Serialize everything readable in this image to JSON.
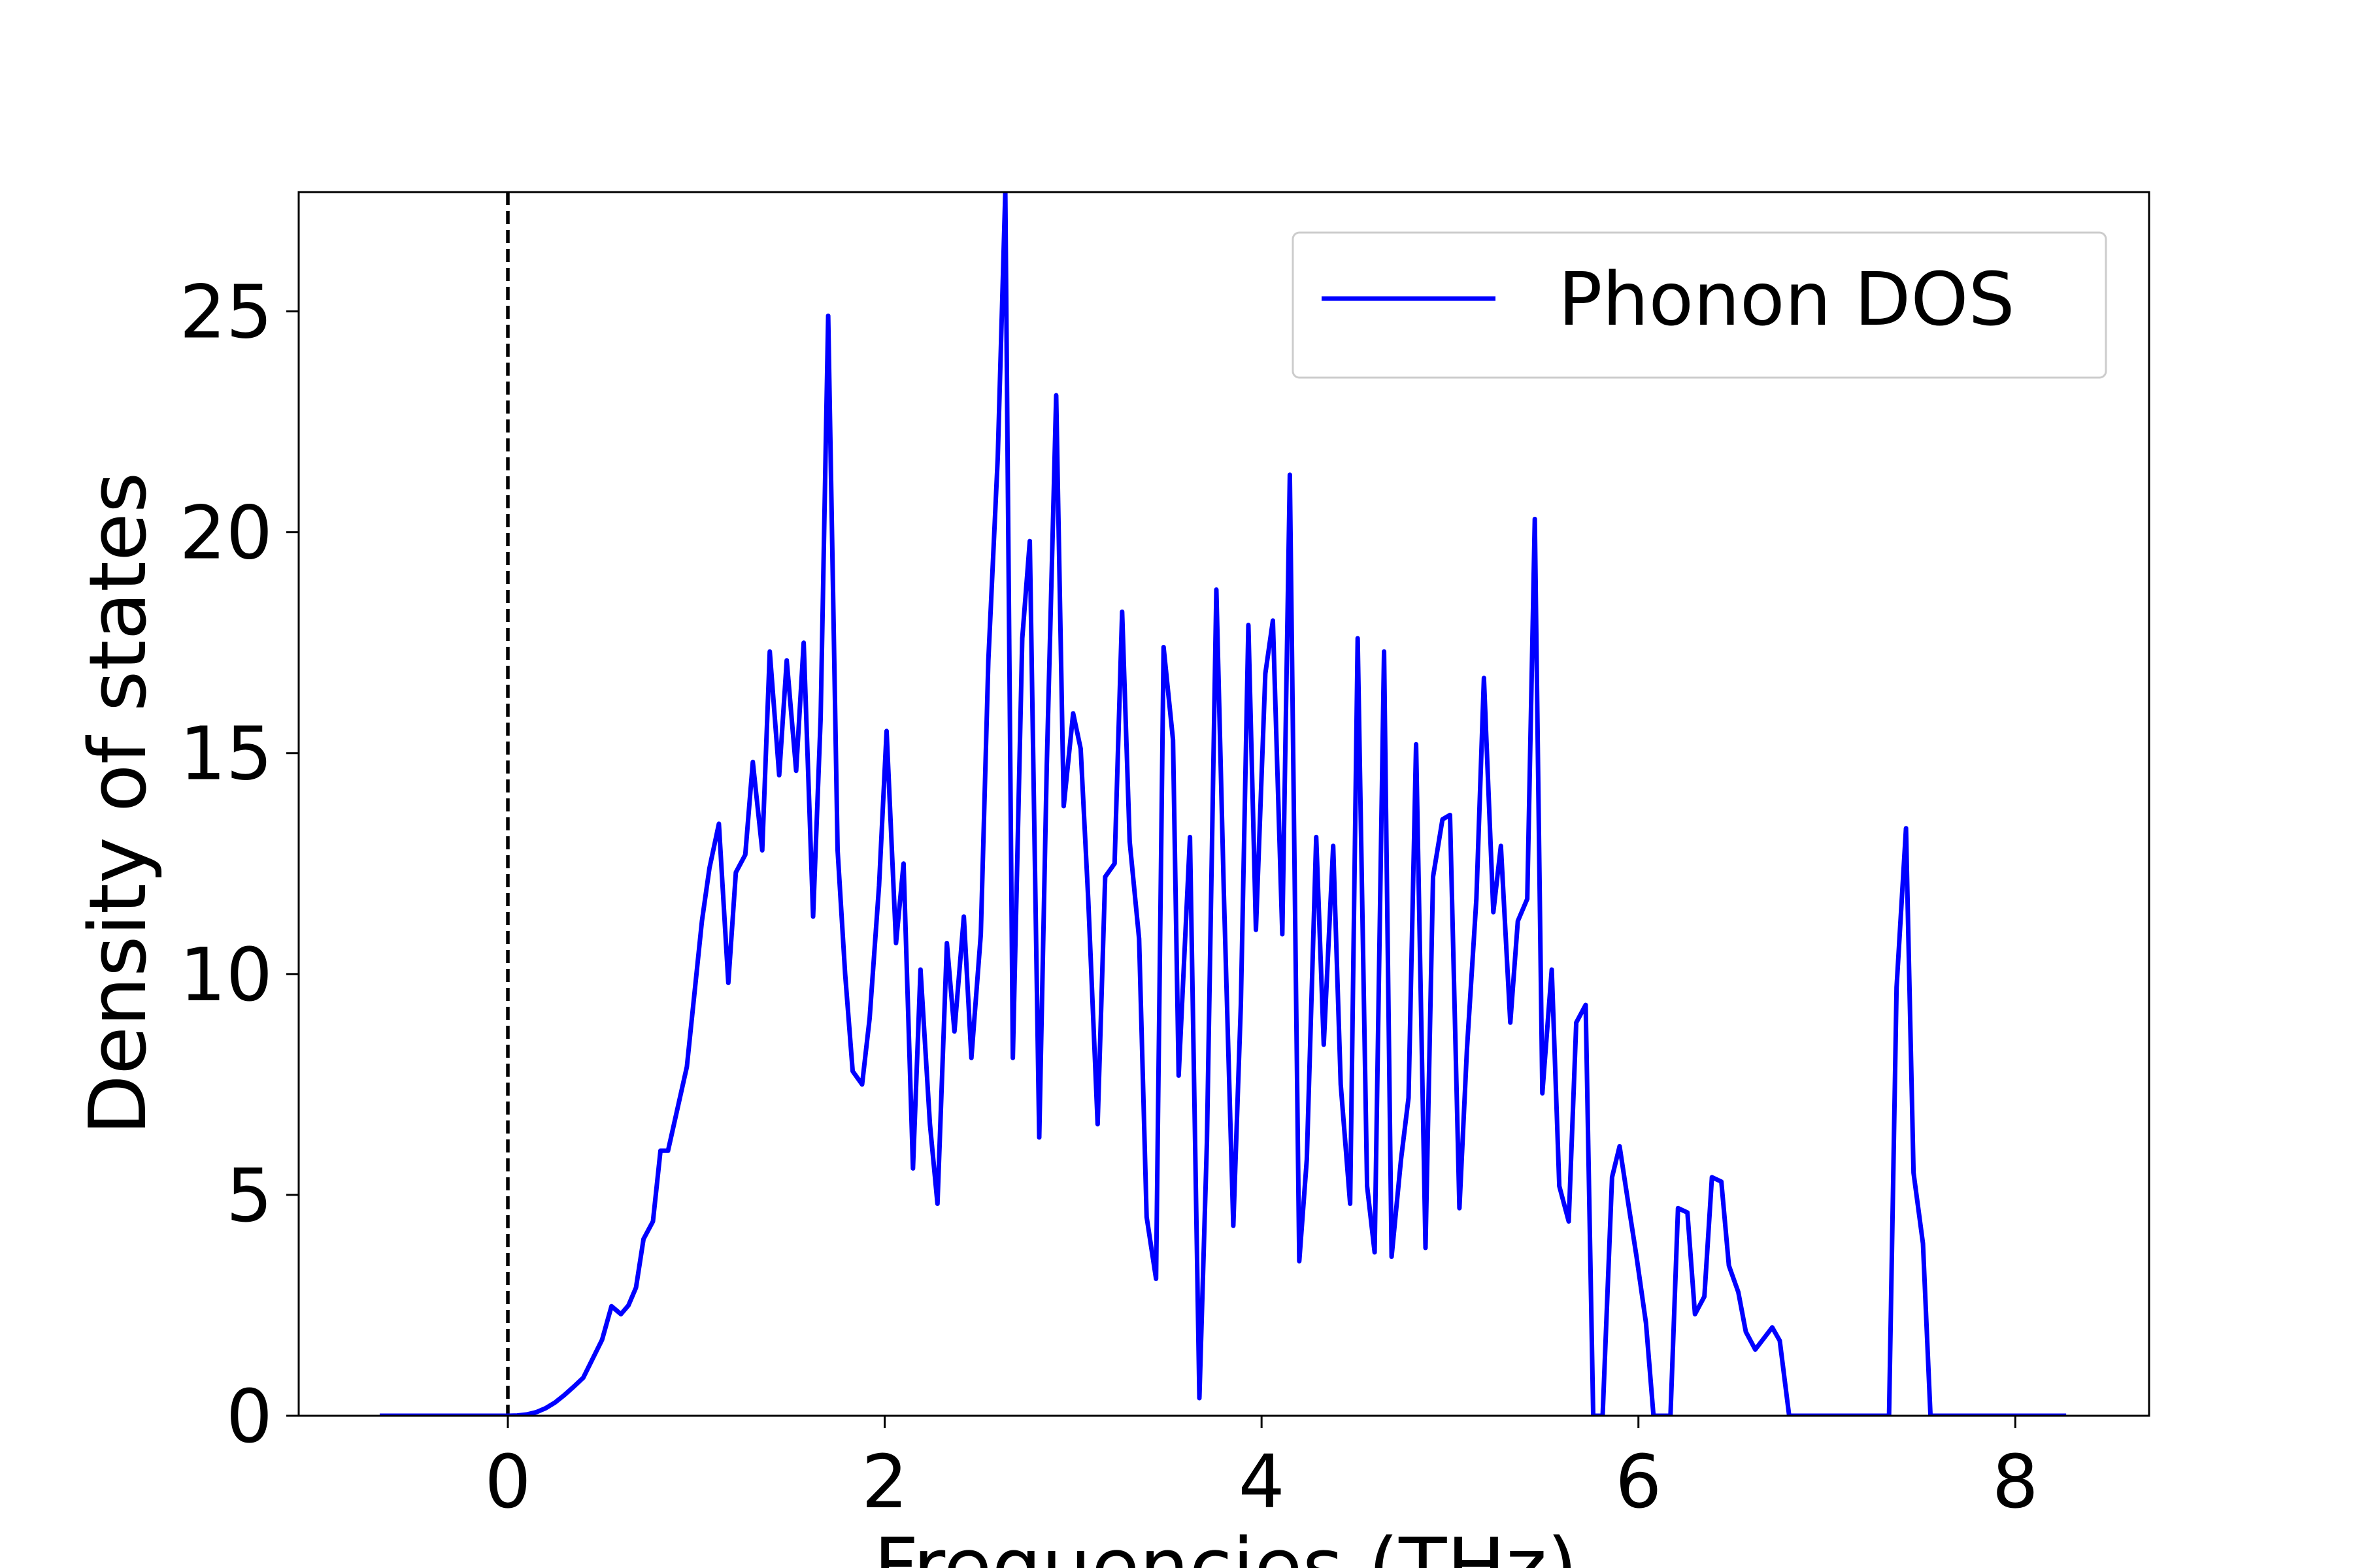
{
  "chart_data": {
    "type": "line",
    "xlabel": "Frequencies (THz)",
    "ylabel": "Density of states",
    "xlim": [
      -1.11,
      8.71
    ],
    "ylim": [
      0,
      27.7
    ],
    "xticks": [
      0,
      2,
      4,
      6,
      8
    ],
    "yticks": [
      0,
      5,
      10,
      15,
      20,
      25
    ],
    "vlines": [
      0
    ],
    "legend": "upper right",
    "series": [
      {
        "name": "Phonon DOS",
        "color": "#0000ff",
        "x": [
          -0.68,
          0,
          0.05,
          0.1,
          0.15,
          0.2,
          0.25,
          0.3,
          0.35,
          0.4,
          0.5,
          0.55,
          0.6,
          0.64,
          0.68,
          0.72,
          0.77,
          0.81,
          0.85,
          0.95,
          1.03,
          1.07,
          1.12,
          1.17,
          1.21,
          1.26,
          1.3,
          1.35,
          1.39,
          1.44,
          1.48,
          1.53,
          1.57,
          1.62,
          1.66,
          1.7,
          1.75,
          1.79,
          1.83,
          1.88,
          1.92,
          1.97,
          2.01,
          2.06,
          2.1,
          2.15,
          2.19,
          2.24,
          2.28,
          2.33,
          2.37,
          2.42,
          2.46,
          2.51,
          2.55,
          2.6,
          2.64,
          2.68,
          2.73,
          2.77,
          2.82,
          2.86,
          2.91,
          2.95,
          3.0,
          3.04,
          3.08,
          3.13,
          3.17,
          3.22,
          3.26,
          3.3,
          3.35,
          3.39,
          3.44,
          3.48,
          3.53,
          3.56,
          3.62,
          3.67,
          3.71,
          3.76,
          3.8,
          3.85,
          3.89,
          3.93,
          3.97,
          4.02,
          4.06,
          4.11,
          4.15,
          4.2,
          4.24,
          4.29,
          4.33,
          4.38,
          4.42,
          4.47,
          4.51,
          4.56,
          4.6,
          4.65,
          4.69,
          4.74,
          4.78,
          4.82,
          4.87,
          4.91,
          4.96,
          5.0,
          5.05,
          5.09,
          5.14,
          5.18,
          5.23,
          5.27,
          5.32,
          5.36,
          5.41,
          5.45,
          5.49,
          5.54,
          5.58,
          5.63,
          5.67,
          5.72,
          5.76,
          5.81,
          5.86,
          5.9,
          5.95,
          5.99,
          6.04,
          6.08,
          6.17,
          6.21,
          6.26,
          6.3,
          6.35,
          6.39,
          6.44,
          6.48,
          6.53,
          6.57,
          6.62,
          6.71,
          6.75,
          6.8,
          7.33,
          7.37,
          7.42,
          7.46,
          7.51,
          7.55,
          8.27
        ],
        "values": [
          0,
          0,
          0.005,
          0.03,
          0.08,
          0.17,
          0.3,
          0.47,
          0.66,
          0.86,
          1.72,
          2.48,
          2.3,
          2.5,
          2.9,
          4.0,
          4.4,
          6.0,
          6.0,
          7.9,
          11.2,
          12.4,
          13.4,
          9.8,
          12.3,
          12.7,
          14.8,
          12.8,
          17.3,
          14.5,
          17.1,
          14.6,
          17.5,
          11.3,
          15.8,
          24.9,
          12.8,
          10.0,
          7.8,
          7.5,
          9.0,
          12.0,
          15.5,
          10.7,
          12.5,
          5.6,
          10.1,
          6.6,
          4.8,
          10.7,
          8.7,
          11.3,
          8.1,
          10.9,
          17.1,
          21.7,
          27.7,
          8.1,
          17.6,
          19.8,
          6.3,
          14.7,
          23.1,
          13.8,
          15.9,
          15.1,
          11.7,
          6.6,
          12.2,
          12.5,
          18.2,
          13.0,
          10.8,
          4.5,
          3.1,
          17.4,
          15.3,
          7.7,
          13.1,
          0.4,
          6.2,
          18.7,
          11.8,
          4.3,
          9.3,
          17.9,
          11.0,
          16.8,
          18.0,
          10.9,
          21.3,
          3.5,
          5.8,
          13.1,
          8.4,
          12.9,
          7.5,
          4.8,
          17.6,
          5.2,
          3.7,
          17.3,
          3.6,
          5.8,
          7.2,
          15.2,
          3.8,
          12.2,
          13.5,
          13.6,
          4.7,
          8.3,
          11.7,
          16.7,
          11.4,
          12.9,
          8.9,
          11.2,
          11.7,
          20.3,
          7.3,
          10.1,
          5.2,
          4.4,
          8.9,
          9.3,
          0,
          0,
          5.4,
          6.1,
          4.7,
          3.6,
          2.1,
          0,
          0,
          4.7,
          4.6,
          2.3,
          2.7,
          5.4,
          5.3,
          3.4,
          2.8,
          1.9,
          1.5,
          2.0,
          1.7,
          0,
          0,
          9.7,
          13.3,
          5.5,
          3.9,
          0,
          0
        ]
      }
    ]
  }
}
